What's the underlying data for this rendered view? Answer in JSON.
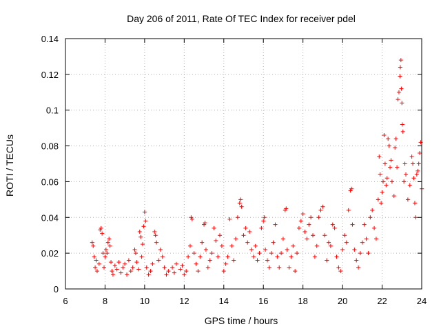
{
  "chart_data": {
    "type": "scatter",
    "title": "Day 206 of 2011, Rate Of TEC Index for receiver pdel",
    "xlabel": "GPS time / hours",
    "ylabel": "ROTI / TECUs",
    "xlim": [
      6,
      24
    ],
    "ylim": [
      0,
      0.14
    ],
    "xticks": [
      6,
      8,
      10,
      12,
      14,
      16,
      18,
      20,
      22,
      24
    ],
    "xtick_labels": [
      "6",
      "8",
      "10",
      "12",
      "14",
      "16",
      "18",
      "20",
      "22",
      "24"
    ],
    "yticks": [
      0,
      0.02,
      0.04,
      0.06,
      0.08,
      0.1,
      0.12,
      0.14
    ],
    "ytick_labels": [
      "0",
      "0.02",
      "0.04",
      "0.06",
      "0.08",
      "0.1",
      "0.12",
      "0.14"
    ],
    "grid": true,
    "marker": "+",
    "series": [
      {
        "name": "ROTI",
        "color": "#ff0000",
        "points": [
          [
            7.35,
            0.026
          ],
          [
            7.4,
            0.024
          ],
          [
            7.45,
            0.018
          ],
          [
            7.5,
            0.012
          ],
          [
            7.55,
            0.016
          ],
          [
            7.6,
            0.01
          ],
          [
            7.7,
            0.014
          ],
          [
            7.75,
            0.033
          ],
          [
            7.8,
            0.034
          ],
          [
            7.85,
            0.031
          ],
          [
            7.9,
            0.02
          ],
          [
            7.95,
            0.012
          ],
          [
            8.0,
            0.018
          ],
          [
            8.05,
            0.022
          ],
          [
            8.1,
            0.02
          ],
          [
            8.15,
            0.026
          ],
          [
            8.2,
            0.028
          ],
          [
            8.25,
            0.024
          ],
          [
            8.3,
            0.015
          ],
          [
            8.35,
            0.01
          ],
          [
            8.4,
            0.008
          ],
          [
            8.5,
            0.013
          ],
          [
            8.6,
            0.011
          ],
          [
            8.7,
            0.015
          ],
          [
            8.8,
            0.009
          ],
          [
            8.9,
            0.012
          ],
          [
            9.0,
            0.014
          ],
          [
            9.1,
            0.008
          ],
          [
            9.2,
            0.016
          ],
          [
            9.3,
            0.01
          ],
          [
            9.4,
            0.012
          ],
          [
            9.5,
            0.022
          ],
          [
            9.55,
            0.02
          ],
          [
            9.6,
            0.015
          ],
          [
            9.7,
            0.011
          ],
          [
            9.75,
            0.032
          ],
          [
            9.8,
            0.029
          ],
          [
            9.85,
            0.018
          ],
          [
            9.9,
            0.025
          ],
          [
            9.95,
            0.035
          ],
          [
            10.0,
            0.043
          ],
          [
            10.05,
            0.038
          ],
          [
            10.1,
            0.012
          ],
          [
            10.2,
            0.008
          ],
          [
            10.3,
            0.01
          ],
          [
            10.4,
            0.014
          ],
          [
            10.5,
            0.032
          ],
          [
            10.55,
            0.03
          ],
          [
            10.6,
            0.026
          ],
          [
            10.7,
            0.016
          ],
          [
            10.8,
            0.022
          ],
          [
            10.9,
            0.018
          ],
          [
            11.0,
            0.012
          ],
          [
            11.1,
            0.008
          ],
          [
            11.2,
            0.01
          ],
          [
            11.4,
            0.012
          ],
          [
            11.5,
            0.009
          ],
          [
            11.6,
            0.014
          ],
          [
            11.8,
            0.011
          ],
          [
            11.9,
            0.013
          ],
          [
            12.0,
            0.008
          ],
          [
            12.1,
            0.01
          ],
          [
            12.2,
            0.018
          ],
          [
            12.3,
            0.024
          ],
          [
            12.35,
            0.04
          ],
          [
            12.4,
            0.039
          ],
          [
            12.5,
            0.02
          ],
          [
            12.6,
            0.014
          ],
          [
            12.7,
            0.01
          ],
          [
            12.8,
            0.018
          ],
          [
            12.9,
            0.026
          ],
          [
            13.0,
            0.036
          ],
          [
            13.05,
            0.037
          ],
          [
            13.1,
            0.022
          ],
          [
            13.2,
            0.012
          ],
          [
            13.3,
            0.016
          ],
          [
            13.4,
            0.02
          ],
          [
            13.5,
            0.034
          ],
          [
            13.6,
            0.027
          ],
          [
            13.7,
            0.018
          ],
          [
            13.8,
            0.03
          ],
          [
            13.9,
            0.024
          ],
          [
            14.0,
            0.01
          ],
          [
            14.1,
            0.014
          ],
          [
            14.2,
            0.018
          ],
          [
            14.3,
            0.039
          ],
          [
            14.4,
            0.024
          ],
          [
            14.5,
            0.016
          ],
          [
            14.6,
            0.028
          ],
          [
            14.7,
            0.04
          ],
          [
            14.8,
            0.048
          ],
          [
            14.85,
            0.05
          ],
          [
            14.9,
            0.046
          ],
          [
            15.0,
            0.03
          ],
          [
            15.1,
            0.034
          ],
          [
            15.2,
            0.026
          ],
          [
            15.3,
            0.032
          ],
          [
            15.4,
            0.022
          ],
          [
            15.5,
            0.018
          ],
          [
            15.6,
            0.024
          ],
          [
            15.7,
            0.016
          ],
          [
            15.8,
            0.02
          ],
          [
            15.9,
            0.034
          ],
          [
            16.0,
            0.038
          ],
          [
            16.05,
            0.04
          ],
          [
            16.1,
            0.022
          ],
          [
            16.2,
            0.016
          ],
          [
            16.3,
            0.012
          ],
          [
            16.4,
            0.02
          ],
          [
            16.5,
            0.026
          ],
          [
            16.6,
            0.036
          ],
          [
            16.7,
            0.018
          ],
          [
            16.8,
            0.012
          ],
          [
            16.9,
            0.02
          ],
          [
            17.0,
            0.028
          ],
          [
            17.1,
            0.044
          ],
          [
            17.15,
            0.045
          ],
          [
            17.2,
            0.022
          ],
          [
            17.3,
            0.012
          ],
          [
            17.4,
            0.018
          ],
          [
            17.5,
            0.024
          ],
          [
            17.6,
            0.01
          ],
          [
            17.7,
            0.02
          ],
          [
            17.8,
            0.034
          ],
          [
            17.9,
            0.038
          ],
          [
            18.0,
            0.042
          ],
          [
            18.1,
            0.032
          ],
          [
            18.2,
            0.028
          ],
          [
            18.3,
            0.036
          ],
          [
            18.4,
            0.04
          ],
          [
            18.5,
            0.03
          ],
          [
            18.6,
            0.018
          ],
          [
            18.7,
            0.024
          ],
          [
            18.8,
            0.04
          ],
          [
            18.9,
            0.044
          ],
          [
            19.0,
            0.046
          ],
          [
            19.1,
            0.03
          ],
          [
            19.2,
            0.016
          ],
          [
            19.3,
            0.026
          ],
          [
            19.4,
            0.024
          ],
          [
            19.5,
            0.036
          ],
          [
            19.6,
            0.034
          ],
          [
            19.7,
            0.018
          ],
          [
            19.8,
            0.012
          ],
          [
            19.9,
            0.01
          ],
          [
            20.0,
            0.022
          ],
          [
            20.1,
            0.03
          ],
          [
            20.2,
            0.026
          ],
          [
            20.3,
            0.044
          ],
          [
            20.4,
            0.055
          ],
          [
            20.45,
            0.056
          ],
          [
            20.5,
            0.036
          ],
          [
            20.6,
            0.022
          ],
          [
            20.7,
            0.016
          ],
          [
            20.8,
            0.012
          ],
          [
            20.9,
            0.02
          ],
          [
            21.0,
            0.026
          ],
          [
            21.1,
            0.036
          ],
          [
            21.2,
            0.028
          ],
          [
            21.3,
            0.02
          ],
          [
            21.4,
            0.04
          ],
          [
            21.5,
            0.044
          ],
          [
            21.6,
            0.034
          ],
          [
            21.7,
            0.028
          ],
          [
            21.8,
            0.05
          ],
          [
            21.85,
            0.074
          ],
          [
            21.9,
            0.064
          ],
          [
            21.95,
            0.048
          ],
          [
            22.0,
            0.054
          ],
          [
            22.05,
            0.06
          ],
          [
            22.1,
            0.086
          ],
          [
            22.15,
            0.07
          ],
          [
            22.2,
            0.058
          ],
          [
            22.25,
            0.062
          ],
          [
            22.3,
            0.084
          ],
          [
            22.35,
            0.08
          ],
          [
            22.4,
            0.068
          ],
          [
            22.45,
            0.072
          ],
          [
            22.5,
            0.06
          ],
          [
            22.6,
            0.052
          ],
          [
            22.65,
            0.079
          ],
          [
            22.7,
            0.084
          ],
          [
            22.75,
            0.068
          ],
          [
            22.8,
            0.106
          ],
          [
            22.85,
            0.11
          ],
          [
            22.9,
            0.119
          ],
          [
            22.92,
            0.124
          ],
          [
            22.95,
            0.128
          ],
          [
            22.97,
            0.112
          ],
          [
            23.0,
            0.104
          ],
          [
            23.02,
            0.092
          ],
          [
            23.05,
            0.088
          ],
          [
            23.1,
            0.06
          ],
          [
            23.15,
            0.07
          ],
          [
            23.2,
            0.064
          ],
          [
            23.3,
            0.05
          ],
          [
            23.4,
            0.058
          ],
          [
            23.5,
            0.074
          ],
          [
            23.55,
            0.07
          ],
          [
            23.6,
            0.062
          ],
          [
            23.65,
            0.048
          ],
          [
            23.7,
            0.04
          ],
          [
            23.75,
            0.064
          ],
          [
            23.8,
            0.066
          ],
          [
            23.85,
            0.07
          ],
          [
            23.9,
            0.076
          ],
          [
            23.95,
            0.082
          ],
          [
            24.0,
            0.056
          ]
        ]
      }
    ]
  }
}
